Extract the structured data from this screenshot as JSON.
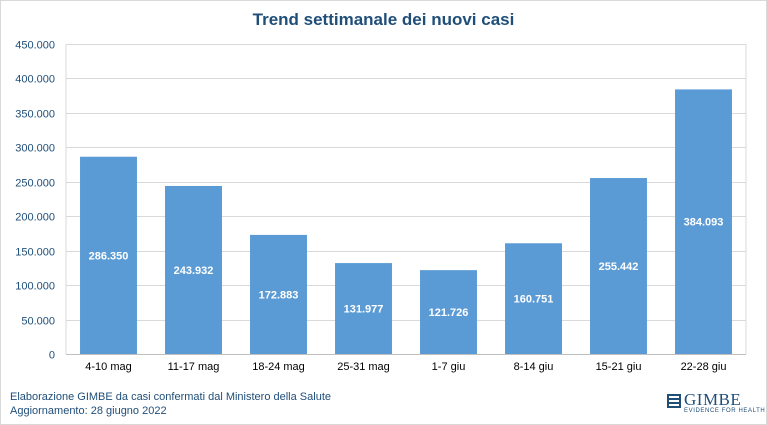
{
  "chart_data": {
    "type": "bar",
    "title": "Trend settimanale dei nuovi casi",
    "categories": [
      "4-10 mag",
      "11-17 mag",
      "18-24 mag",
      "25-31 mag",
      "1-7 giu",
      "8-14 giu",
      "15-21 giu",
      "22-28 giu"
    ],
    "values": [
      286350,
      243932,
      172883,
      131977,
      121726,
      160751,
      255442,
      384093
    ],
    "value_labels": [
      "286.350",
      "243.932",
      "172.883",
      "131.977",
      "121.726",
      "160.751",
      "255.442",
      "384.093"
    ],
    "yticks": [
      0,
      50000,
      100000,
      150000,
      200000,
      250000,
      300000,
      350000,
      400000,
      450000
    ],
    "ytick_labels": [
      "0",
      "50.000",
      "100.000",
      "150.000",
      "200.000",
      "250.000",
      "300.000",
      "350.000",
      "400.000",
      "450.000"
    ],
    "ylim": [
      0,
      450000
    ],
    "grid": true,
    "bar_color": "#5b9bd5",
    "xlabel": "",
    "ylabel": ""
  },
  "footer": {
    "line1": "Elaborazione GIMBE da casi confermati dal Ministero della Salute",
    "line2": "Aggiornamento: 28 giugno 2022"
  },
  "logo": {
    "word": "GIMBE",
    "tagline": "EVIDENCE FOR HEALTH"
  },
  "colors": {
    "title": "#1f4e79",
    "axis_text": "#1f4e79",
    "grid": "#d9d9d9"
  }
}
